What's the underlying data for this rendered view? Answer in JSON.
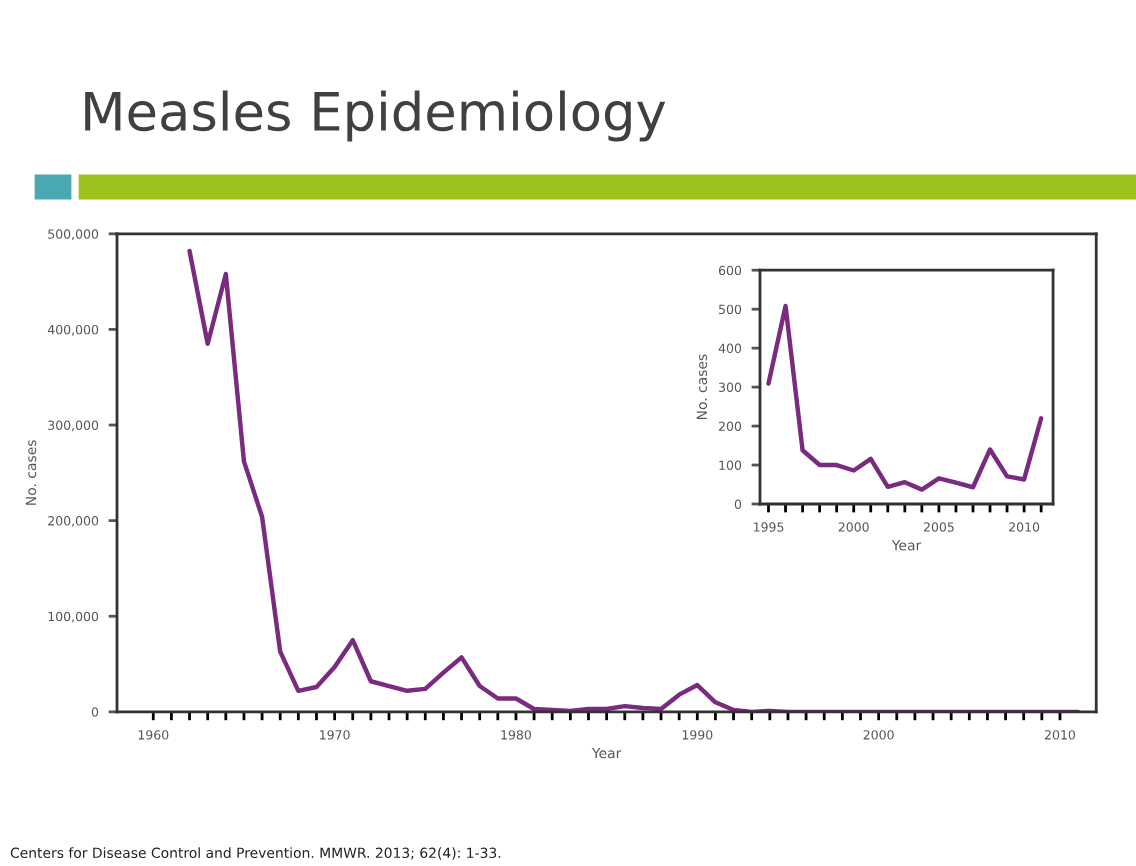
{
  "chart_data": [
    {
      "type": "line",
      "title": "Measles Epidemiology",
      "annotations": [
        "Centers for Disease Control and Prevention. MMWR. 2013; 62(4): 1-33."
      ],
      "xlabel": "Year",
      "ylabel": "No. cases",
      "x": [
        1962,
        1963,
        1964,
        1965,
        1966,
        1967,
        1968,
        1969,
        1970,
        1971,
        1972,
        1973,
        1974,
        1975,
        1976,
        1977,
        1978,
        1979,
        1980,
        1981,
        1982,
        1983,
        1984,
        1985,
        1986,
        1987,
        1988,
        1989,
        1990,
        1991,
        1992,
        1993,
        1994,
        1995,
        1996,
        1997,
        1998,
        1999,
        2000,
        2001,
        2002,
        2003,
        2004,
        2005,
        2006,
        2007,
        2008,
        2009,
        2010,
        2011
      ],
      "series": [
        {
          "color": "#7a2b80",
          "values": [
            482000,
            385000,
            458000,
            262000,
            204000,
            63000,
            22000,
            26000,
            47000,
            75000,
            32000,
            27000,
            22000,
            24000,
            41000,
            57000,
            27000,
            14000,
            14000,
            3000,
            2000,
            1000,
            3000,
            3000,
            6000,
            4000,
            3000,
            18000,
            28000,
            10000,
            2000,
            0,
            1000,
            0,
            0,
            0,
            0,
            0,
            0,
            0,
            0,
            0,
            0,
            0,
            0,
            0,
            0,
            0,
            0,
            0
          ]
        }
      ],
      "xlim": [
        1958,
        2012
      ],
      "ylim": [
        0,
        500000
      ],
      "xticks": [
        {
          "value": 1960,
          "label": "1960"
        },
        {
          "value": 1961,
          "label": null
        },
        {
          "value": 1962,
          "label": null
        },
        {
          "value": 1963,
          "label": null
        },
        {
          "value": 1964,
          "label": null
        },
        {
          "value": 1965,
          "label": null
        },
        {
          "value": 1966,
          "label": null
        },
        {
          "value": 1967,
          "label": null
        },
        {
          "value": 1968,
          "label": null
        },
        {
          "value": 1969,
          "label": null
        },
        {
          "value": 1970,
          "label": "1970"
        },
        {
          "value": 1971,
          "label": null
        },
        {
          "value": 1972,
          "label": null
        },
        {
          "value": 1973,
          "label": null
        },
        {
          "value": 1974,
          "label": null
        },
        {
          "value": 1975,
          "label": null
        },
        {
          "value": 1976,
          "label": null
        },
        {
          "value": 1977,
          "label": null
        },
        {
          "value": 1978,
          "label": null
        },
        {
          "value": 1979,
          "label": null
        },
        {
          "value": 1980,
          "label": "1980"
        },
        {
          "value": 1981,
          "label": null
        },
        {
          "value": 1982,
          "label": null
        },
        {
          "value": 1983,
          "label": null
        },
        {
          "value": 1984,
          "label": null
        },
        {
          "value": 1985,
          "label": null
        },
        {
          "value": 1986,
          "label": null
        },
        {
          "value": 1987,
          "label": null
        },
        {
          "value": 1988,
          "label": null
        },
        {
          "value": 1989,
          "label": null
        },
        {
          "value": 1990,
          "label": "1990"
        },
        {
          "value": 1991,
          "label": null
        },
        {
          "value": 1992,
          "label": null
        },
        {
          "value": 1993,
          "label": null
        },
        {
          "value": 1994,
          "label": null
        },
        {
          "value": 1995,
          "label": null
        },
        {
          "value": 1996,
          "label": null
        },
        {
          "value": 1997,
          "label": null
        },
        {
          "value": 1998,
          "label": null
        },
        {
          "value": 1999,
          "label": null
        },
        {
          "value": 2000,
          "label": "2000"
        },
        {
          "value": 2001,
          "label": null
        },
        {
          "value": 2002,
          "label": null
        },
        {
          "value": 2003,
          "label": null
        },
        {
          "value": 2004,
          "label": null
        },
        {
          "value": 2005,
          "label": null
        },
        {
          "value": 2006,
          "label": null
        },
        {
          "value": 2007,
          "label": null
        },
        {
          "value": 2008,
          "label": null
        },
        {
          "value": 2009,
          "label": null
        },
        {
          "value": 2010,
          "label": "2010"
        }
      ],
      "yticks": [
        {
          "value": 0,
          "label": "0"
        },
        {
          "value": 100000,
          "label": "100,000"
        },
        {
          "value": 200000,
          "label": "200,000"
        },
        {
          "value": 300000,
          "label": "300,000"
        },
        {
          "value": 400000,
          "label": "400,000"
        },
        {
          "value": 500000,
          "label": "500,000"
        }
      ]
    },
    {
      "type": "line",
      "xlabel": "Year",
      "ylabel": "No. cases",
      "x": [
        1995,
        1996,
        1997,
        1998,
        1999,
        2000,
        2001,
        2002,
        2003,
        2004,
        2005,
        2006,
        2007,
        2008,
        2009,
        2010,
        2011
      ],
      "series": [
        {
          "color": "#7a2b80",
          "values": [
            309,
            508,
            138,
            100,
            100,
            86,
            116,
            44,
            56,
            37,
            66,
            55,
            43,
            140,
            71,
            63,
            220
          ]
        }
      ],
      "xlim": [
        1994.5,
        2011.7
      ],
      "ylim": [
        0,
        600
      ],
      "xticks": [
        {
          "value": 1995,
          "label": "1995"
        },
        {
          "value": 1996,
          "label": null
        },
        {
          "value": 1997,
          "label": null
        },
        {
          "value": 1998,
          "label": null
        },
        {
          "value": 1999,
          "label": null
        },
        {
          "value": 2000,
          "label": "2000"
        },
        {
          "value": 2001,
          "label": null
        },
        {
          "value": 2002,
          "label": null
        },
        {
          "value": 2003,
          "label": null
        },
        {
          "value": 2004,
          "label": null
        },
        {
          "value": 2005,
          "label": "2005"
        },
        {
          "value": 2006,
          "label": null
        },
        {
          "value": 2007,
          "label": null
        },
        {
          "value": 2008,
          "label": null
        },
        {
          "value": 2009,
          "label": null
        },
        {
          "value": 2010,
          "label": "2010"
        },
        {
          "value": 2011,
          "label": null
        }
      ],
      "yticks": [
        0,
        100,
        200,
        300,
        400,
        500,
        600
      ]
    }
  ]
}
